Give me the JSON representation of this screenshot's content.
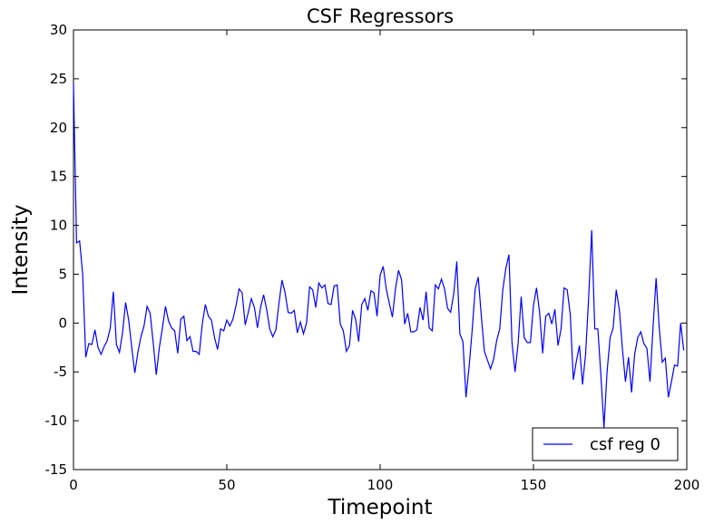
{
  "chart_data": {
    "type": "line",
    "title": "CSF Regressors",
    "xlabel": "Timepoint",
    "ylabel": "Intensity",
    "xlim": [
      0,
      200
    ],
    "ylim": [
      -15,
      30
    ],
    "xticks": [
      0,
      50,
      100,
      150,
      200
    ],
    "yticks": [
      -15,
      -10,
      -5,
      0,
      5,
      10,
      15,
      20,
      25,
      30
    ],
    "grid": false,
    "legend_position": "lower-right",
    "line_color": "#0000ff",
    "series": [
      {
        "name": "csf reg 0",
        "x": [
          0,
          1,
          2,
          3,
          4,
          5,
          6,
          7,
          8,
          9,
          10,
          11,
          12,
          13,
          14,
          15,
          16,
          17,
          18,
          19,
          20,
          21,
          22,
          23,
          24,
          25,
          26,
          27,
          28,
          29,
          30,
          31,
          32,
          33,
          34,
          35,
          36,
          37,
          38,
          39,
          40,
          41,
          42,
          43,
          44,
          45,
          46,
          47,
          48,
          49,
          50,
          51,
          52,
          53,
          54,
          55,
          56,
          57,
          58,
          59,
          60,
          61,
          62,
          63,
          64,
          65,
          66,
          67,
          68,
          69,
          70,
          71,
          72,
          73,
          74,
          75,
          76,
          77,
          78,
          79,
          80,
          81,
          82,
          83,
          84,
          85,
          86,
          87,
          88,
          89,
          90,
          91,
          92,
          93,
          94,
          95,
          96,
          97,
          98,
          99,
          100,
          101,
          102,
          103,
          104,
          105,
          106,
          107,
          108,
          109,
          110,
          111,
          112,
          113,
          114,
          115,
          116,
          117,
          118,
          119,
          120,
          121,
          122,
          123,
          124,
          125,
          126,
          127,
          128,
          129,
          130,
          131,
          132,
          133,
          134,
          135,
          136,
          137,
          138,
          139,
          140,
          141,
          142,
          143,
          144,
          145,
          146,
          147,
          148,
          149,
          150,
          151,
          152,
          153,
          154,
          155,
          156,
          157,
          158,
          159,
          160,
          161,
          162,
          163,
          164,
          165,
          166,
          167,
          168,
          169,
          170,
          171,
          172,
          173,
          174,
          175,
          176,
          177,
          178,
          179,
          180,
          181,
          182,
          183,
          184,
          185,
          186,
          187,
          188,
          189,
          190,
          191,
          192,
          193,
          194,
          195,
          196,
          197,
          198,
          199
        ],
        "values": [
          24.5,
          8.2,
          8.4,
          5.0,
          -3.5,
          -2.1,
          -2.2,
          -0.7,
          -2.5,
          -3.2,
          -2.4,
          -1.8,
          -0.5,
          3.2,
          -2.2,
          -3.0,
          -1.0,
          2.1,
          0.3,
          -2.5,
          -5.1,
          -3.0,
          -1.4,
          -0.3,
          1.7,
          1.0,
          -2.0,
          -5.3,
          -2.5,
          -0.5,
          1.7,
          0.2,
          -0.5,
          -0.8,
          -3.1,
          0.4,
          0.7,
          -1.8,
          -1.4,
          -2.9,
          -2.9,
          -3.2,
          -0.1,
          1.9,
          0.7,
          0.3,
          -1.5,
          -2.7,
          -0.6,
          -0.8,
          0.3,
          -0.3,
          0.4,
          1.8,
          3.5,
          3.1,
          -0.2,
          1.1,
          2.5,
          1.6,
          -0.5,
          1.6,
          2.9,
          1.4,
          -0.6,
          -1.4,
          -0.7,
          2.0,
          4.4,
          3.1,
          1.1,
          1.0,
          1.3,
          -1.0,
          0.1,
          -1.1,
          0.0,
          3.7,
          3.4,
          1.6,
          4.1,
          3.6,
          3.9,
          2.0,
          1.9,
          3.8,
          3.9,
          -0.1,
          -0.8,
          -2.9,
          -2.3,
          1.3,
          0.4,
          -1.9,
          1.9,
          2.5,
          1.3,
          3.3,
          3.1,
          0.7,
          4.9,
          5.8,
          3.5,
          2.0,
          0.6,
          3.5,
          5.4,
          4.4,
          -0.1,
          1.0,
          -0.9,
          -0.9,
          -0.7,
          1.6,
          0.3,
          3.2,
          -0.5,
          -0.8,
          3.9,
          3.5,
          4.5,
          3.5,
          1.5,
          1.1,
          3.0,
          6.3,
          -1.1,
          -1.9,
          -7.6,
          -4.5,
          -0.8,
          3.5,
          4.7,
          0.7,
          -2.9,
          -3.8,
          -4.7,
          -3.7,
          -1.8,
          -0.6,
          3.4,
          5.6,
          7.0,
          -2.0,
          -5.0,
          -2.1,
          2.7,
          -1.5,
          -2.0,
          -2.0,
          1.8,
          3.6,
          1.1,
          -3.1,
          0.7,
          1.0,
          -0.1,
          1.4,
          -2.3,
          -0.6,
          3.6,
          3.4,
          0.9,
          -5.8,
          -3.9,
          -2.3,
          -6.3,
          -3.2,
          2.6,
          9.5,
          -0.6,
          -0.6,
          -5.4,
          -10.7,
          -5.0,
          -1.5,
          -0.5,
          3.4,
          1.4,
          -2.6,
          -6.0,
          -3.5,
          -7.1,
          -3.2,
          -1.5,
          -0.9,
          -2.1,
          -2.6,
          -6.0,
          -0.4,
          4.6,
          -0.4,
          -4.0,
          -3.6,
          -7.6,
          -6.0,
          -4.3,
          -4.4,
          0.0,
          -2.8
        ]
      }
    ]
  }
}
